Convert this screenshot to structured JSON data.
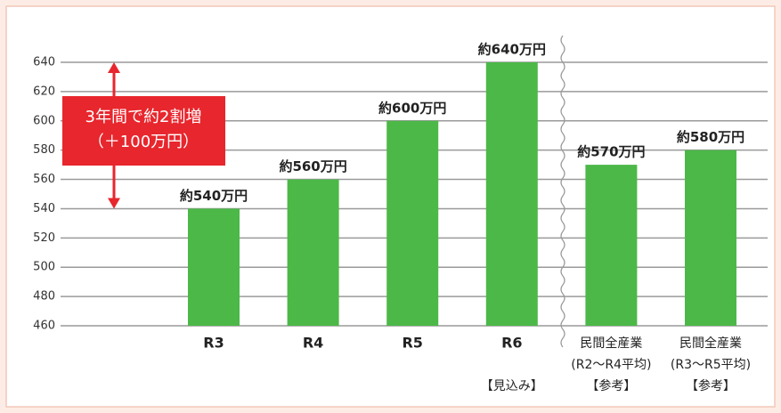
{
  "chart_data": {
    "type": "bar",
    "categories": [
      "R3",
      "R4",
      "R5",
      "R6",
      "民間全産業",
      "民間全産業"
    ],
    "category_sublabels": [
      null,
      null,
      null,
      [
        "【見込み】"
      ],
      [
        "(R2～R4平均)",
        "【参考】"
      ],
      [
        "(R3～R5平均)",
        "【参考】"
      ]
    ],
    "values": [
      540,
      560,
      600,
      640,
      570,
      580
    ],
    "value_labels": [
      "約540万円",
      "約560万円",
      "約600万円",
      "約640万円",
      "約570万円",
      "約580万円"
    ],
    "color": "#4cb848",
    "ylim": [
      460,
      640
    ],
    "yticks": [
      460,
      480,
      500,
      520,
      540,
      560,
      580,
      600,
      620,
      640
    ],
    "grid": true,
    "annotation": {
      "lines": [
        "3年間で約2割増",
        "（＋100万円）"
      ],
      "color": "#e8262d",
      "from": 540,
      "to": 640
    }
  }
}
